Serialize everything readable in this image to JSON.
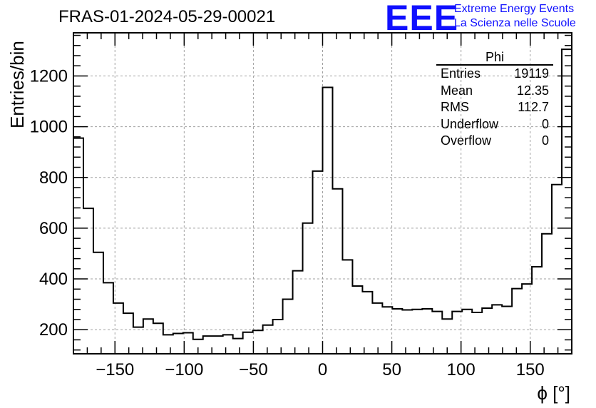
{
  "title": "FRAS-01-2024-05-29-00021",
  "logo": {
    "mark": "EEE",
    "line1": "Extreme Energy Events",
    "line2": "La Scienza nelle Scuole",
    "color": "#1010ff"
  },
  "stats_box": {
    "name": "Phi",
    "rows": [
      {
        "label": "Entries",
        "value": "19119"
      },
      {
        "label": "Mean",
        "value": "12.35"
      },
      {
        "label": "RMS",
        "value": "112.7"
      },
      {
        "label": "Underflow",
        "value": "0"
      },
      {
        "label": "Overflow",
        "value": "0"
      }
    ]
  },
  "chart_data": {
    "type": "histogram",
    "title": "FRAS-01-2024-05-29-00021",
    "xlabel": "ϕ [°]",
    "ylabel": "Entries/bin",
    "xlim": [
      -180,
      180
    ],
    "ylim": [
      105,
      1370
    ],
    "bin_width": 7.2,
    "x_ticks": [
      -150,
      -100,
      -50,
      0,
      50,
      100,
      150
    ],
    "y_ticks": [
      200,
      400,
      600,
      800,
      1000,
      1200
    ],
    "x_tick_labels": [
      "−150",
      "−100",
      "−50",
      "0",
      "50",
      "100",
      "150"
    ],
    "y_tick_labels": [
      "200",
      "400",
      "600",
      "800",
      "1000",
      "1200"
    ],
    "grid": true,
    "values": [
      955,
      678,
      505,
      385,
      305,
      265,
      210,
      242,
      225,
      180,
      185,
      188,
      162,
      175,
      175,
      180,
      165,
      190,
      197,
      218,
      240,
      320,
      432,
      620,
      825,
      1155,
      755,
      475,
      372,
      350,
      305,
      290,
      282,
      278,
      280,
      282,
      272,
      242,
      272,
      280,
      268,
      285,
      298,
      292,
      362,
      380,
      448,
      578,
      772,
      1305
    ]
  }
}
